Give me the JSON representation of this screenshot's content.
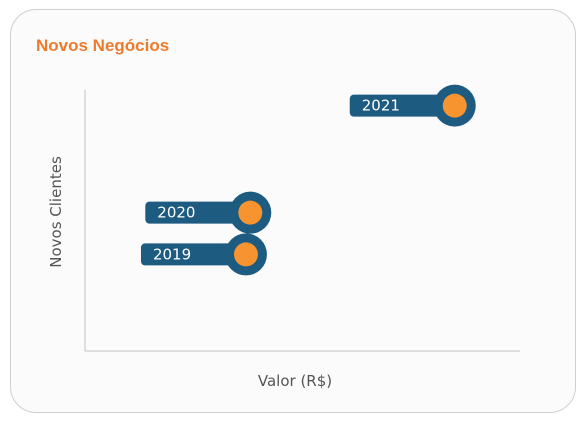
{
  "chart_data": {
    "type": "scatter",
    "title": "Novos Negócios",
    "xlabel": "Valor (R$)",
    "ylabel": "Novos Clientes",
    "xlim": [
      0,
      100
    ],
    "ylim": [
      0,
      100
    ],
    "grid": false,
    "points": [
      {
        "label": "2019",
        "x": 37,
        "y": 37
      },
      {
        "label": "2020",
        "x": 38,
        "y": 53
      },
      {
        "label": "2021",
        "x": 85,
        "y": 94
      }
    ]
  },
  "colors": {
    "title": "#ee7a2c",
    "marker_fill": "#f7942f",
    "marker_ring": "#1e5b80",
    "label_background": "#1e5b80",
    "label_text": "#ffffff",
    "axis": "#d4d4d4"
  }
}
